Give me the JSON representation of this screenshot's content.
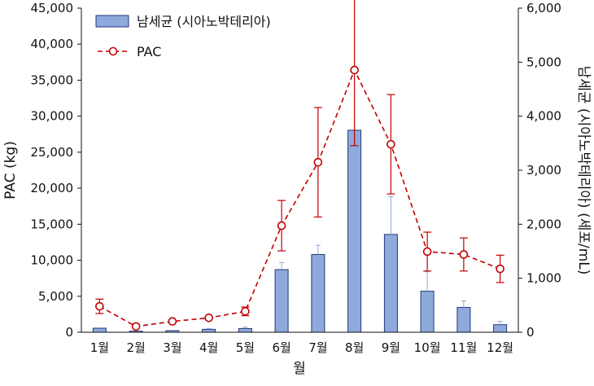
{
  "chart_data": {
    "type": "bar+line",
    "title": "",
    "categories": [
      "1월",
      "2월",
      "3월",
      "4월",
      "5월",
      "6월",
      "7월",
      "8월",
      "9월",
      "10월",
      "11월",
      "12월"
    ],
    "xlabel": "월",
    "ylabel_left": "PAC (kg)",
    "ylabel_right": "남세균 (시아노박테리아) (세포/mL)",
    "ylim_left": [
      0,
      45000
    ],
    "ylim_right": [
      0,
      6000
    ],
    "yticks_left": [
      "0",
      "5,000",
      "10,000",
      "15,000",
      "20,000",
      "25,000",
      "30,000",
      "35,000",
      "40,000",
      "45,000"
    ],
    "yticks_right": [
      "0",
      "1,000",
      "2,000",
      "3,000",
      "4,000",
      "5,000",
      "6,000"
    ],
    "grid": false,
    "legend_position": "top-left",
    "series": [
      {
        "name": "남세균 (시아노박테리아)",
        "type": "bar",
        "axis": "right",
        "color": "#8ea9db",
        "edge_color": "#1f3a78",
        "values": [
          75,
          20,
          30,
          55,
          70,
          1160,
          1440,
          3740,
          1810,
          760,
          460,
          140
        ],
        "error_plus": [
          0,
          0,
          0,
          15,
          25,
          130,
          170,
          0,
          700,
          360,
          120,
          60
        ]
      },
      {
        "name": "PAC",
        "type": "line",
        "axis": "left",
        "color": "#c00000",
        "style": "dashed",
        "marker": "open-circle",
        "values": [
          3600,
          800,
          1500,
          2000,
          2900,
          14800,
          23600,
          36400,
          26100,
          11200,
          10800,
          8800
        ],
        "error": [
          1000,
          0,
          0,
          0,
          600,
          3500,
          7600,
          10500,
          6900,
          2700,
          2300,
          1900
        ]
      }
    ]
  }
}
